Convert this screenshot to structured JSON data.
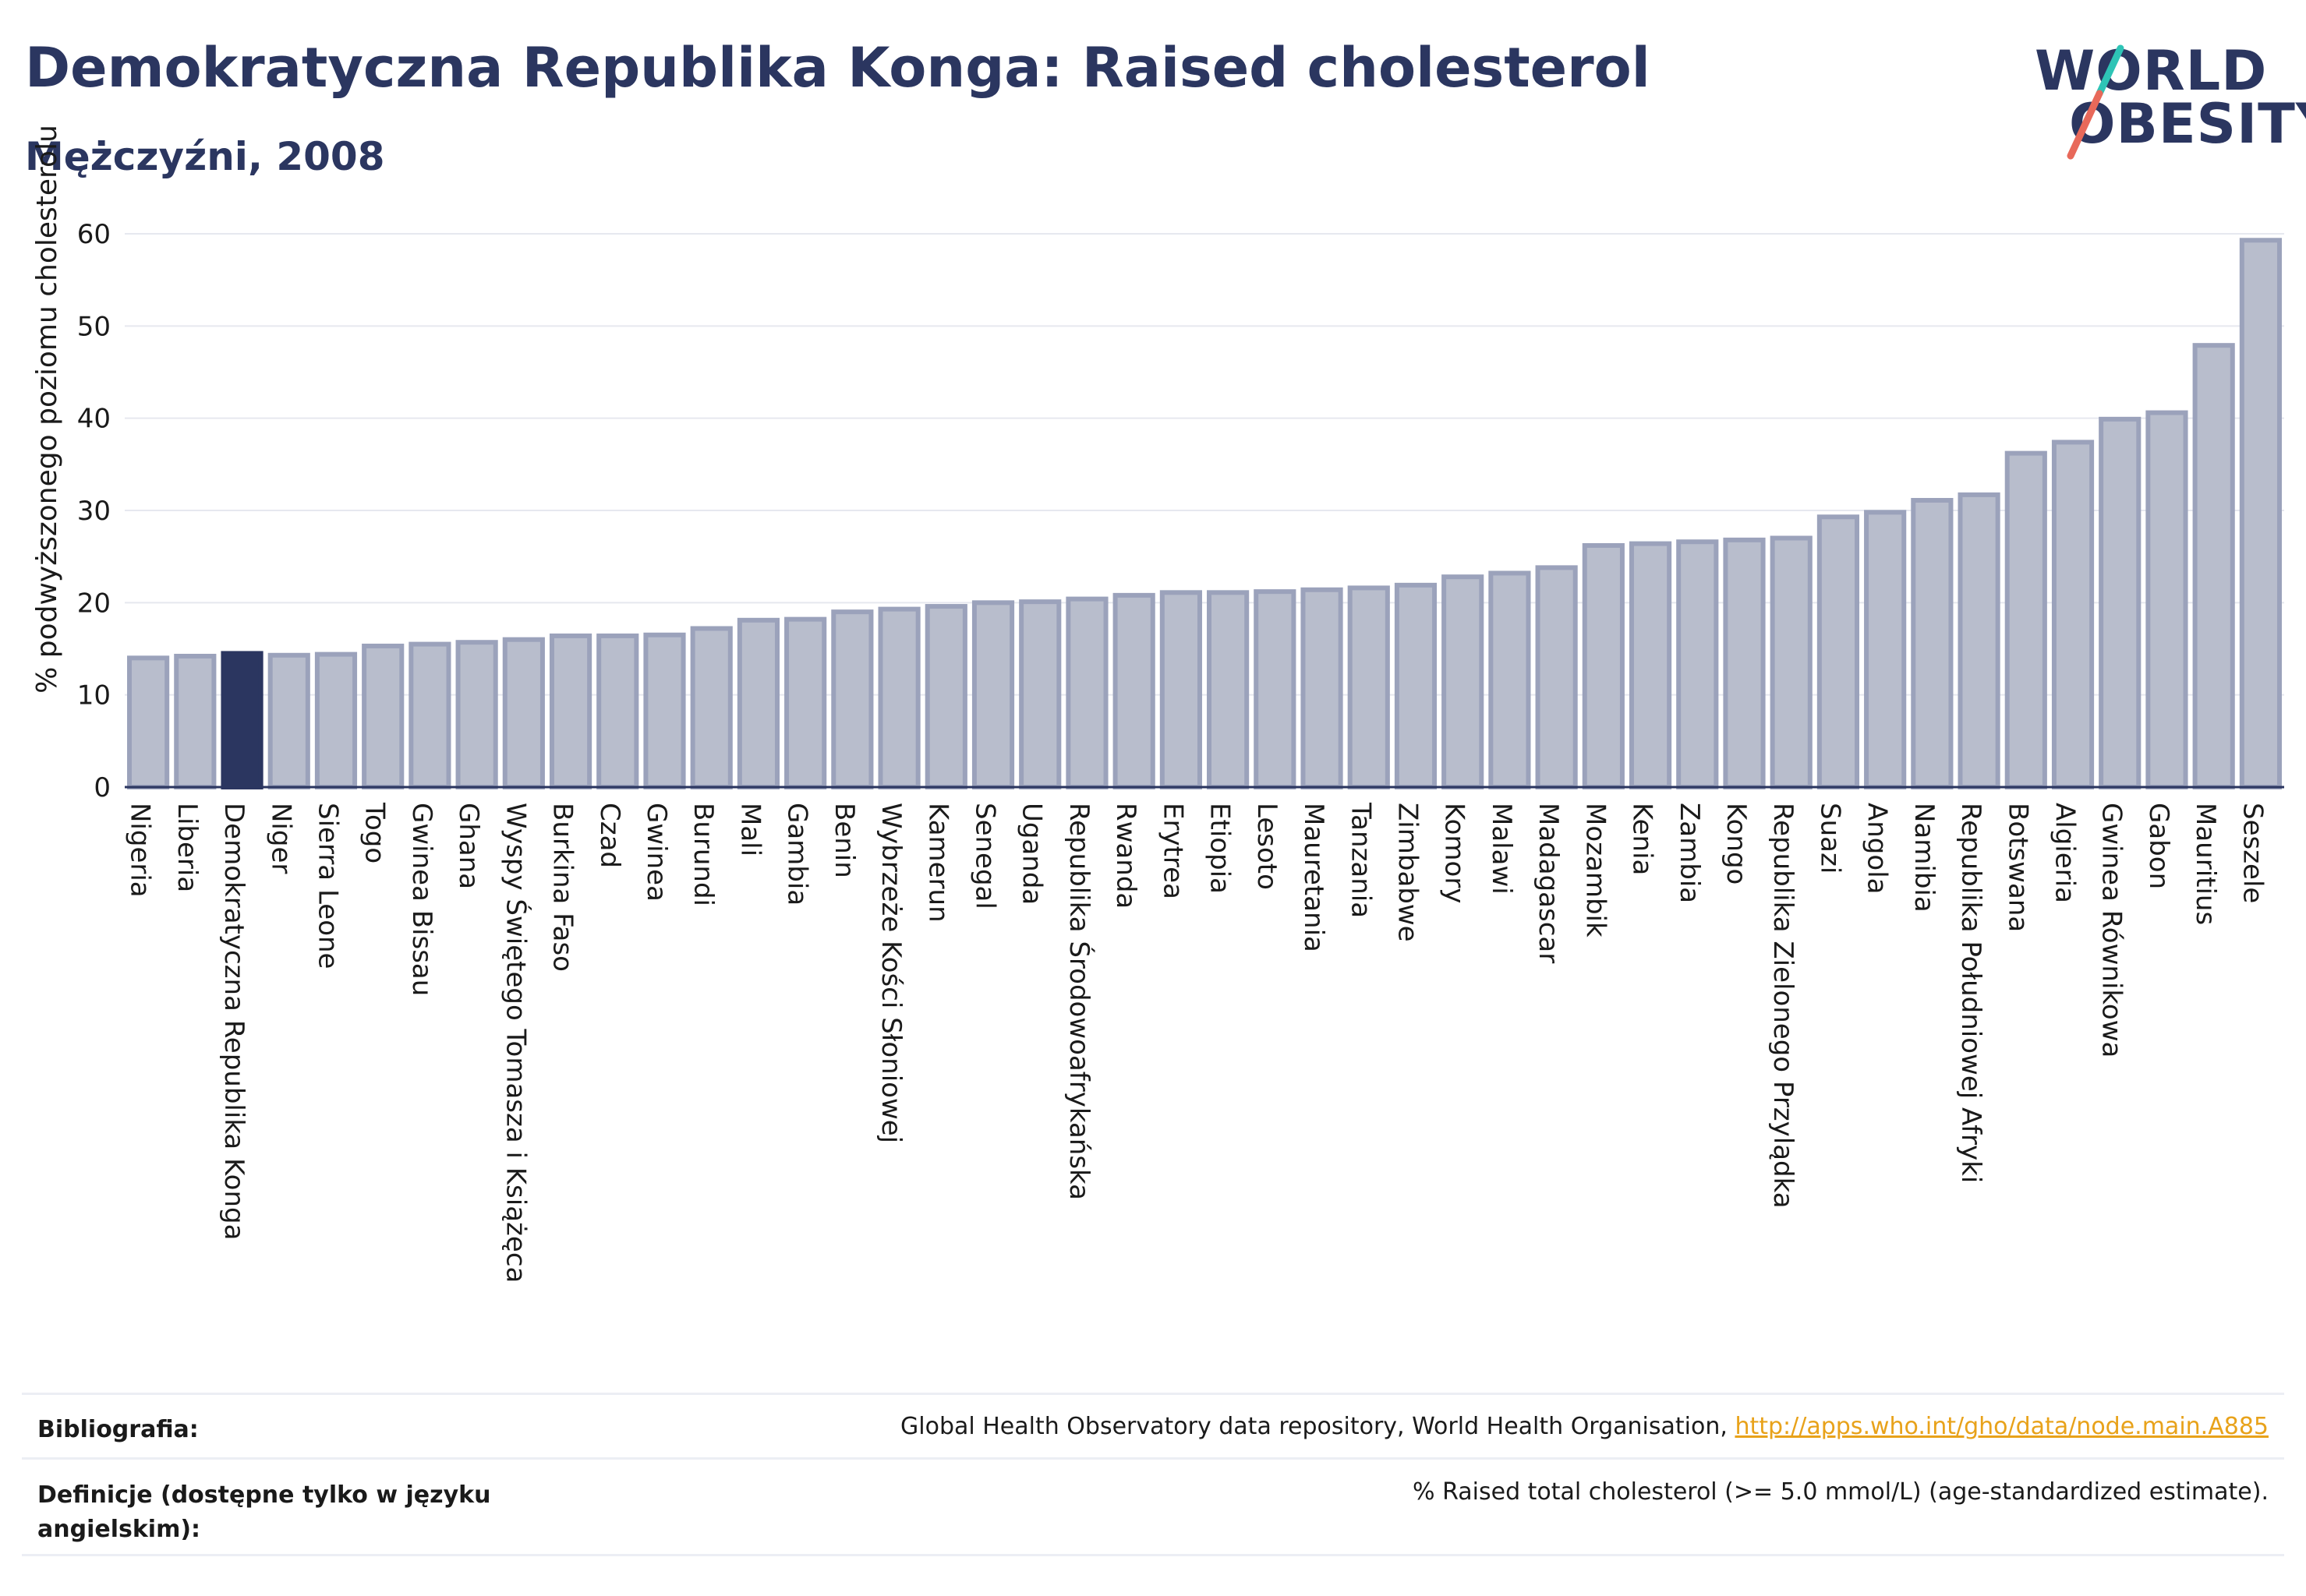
{
  "header": {
    "title": "Demokratyczna Republika Konga: Raised cholesterol",
    "subtitle": "Mężczyźni, 2008"
  },
  "logo": {
    "line1": "WORLD",
    "line2": "OBESITY",
    "slash_colors": [
      "#2ec4b6",
      "#e8695a"
    ]
  },
  "colors": {
    "bar": "#b8bdcc",
    "bar_border": "#9ba2bb",
    "highlight": "#2b3660",
    "axis_text": "#1a1a1a",
    "grid": "#e6e8ef",
    "link": "#e8a21a"
  },
  "chart_data": {
    "type": "bar",
    "ylabel": "% podwyższonego poziomu cholesterolu",
    "ylim": [
      0,
      60
    ],
    "yticks": [
      0,
      10,
      20,
      30,
      40,
      50,
      60
    ],
    "grid": true,
    "highlight": "Demokratyczna Republika Konga",
    "categories": [
      "Nigeria",
      "Liberia",
      "Demokratyczna Republika Konga",
      "Niger",
      "Sierra Leone",
      "Togo",
      "Gwinea Bissau",
      "Ghana",
      "Wyspy Świętego Tomasza i Książęca",
      "Burkina Faso",
      "Czad",
      "Gwinea",
      "Burundi",
      "Mali",
      "Gambia",
      "Benin",
      "Wybrzeże Kości Słoniowej",
      "Kamerun",
      "Senegal",
      "Uganda",
      "Republika Środowoafrykańska",
      "Rwanda",
      "Erytrea",
      "Etiopia",
      "Lesoto",
      "Mauretania",
      "Tanzania",
      "Zimbabwe",
      "Komory",
      "Malawi",
      "Madagascar",
      "Mozambik",
      "Kenia",
      "Zambia",
      "Kongo",
      "Republika Zielonego Przylądka",
      "Suazi",
      "Angola",
      "Namibia",
      "Republika Południowej Afryki",
      "Botswana",
      "Algieria",
      "Gwinea Równikowa",
      "Gabon",
      "Mauritius",
      "Seszele"
    ],
    "values": [
      14.0,
      14.2,
      14.5,
      14.3,
      14.4,
      15.3,
      15.5,
      15.7,
      16.0,
      16.4,
      16.4,
      16.5,
      17.2,
      18.1,
      18.2,
      19.0,
      19.3,
      19.6,
      20.0,
      20.1,
      20.4,
      20.8,
      21.1,
      21.1,
      21.2,
      21.4,
      21.6,
      21.9,
      22.8,
      23.2,
      23.8,
      26.2,
      26.4,
      26.6,
      26.8,
      27.0,
      29.3,
      29.8,
      31.1,
      31.7,
      36.2,
      37.4,
      39.9,
      40.6,
      47.9,
      59.3
    ]
  },
  "table": {
    "rows": [
      {
        "label": "Bibliografia:",
        "value": "Global Health Observatory data repository, World Health Organisation, ",
        "link": "http://apps.who.int/gho/data/node.main.A885"
      },
      {
        "label": "Definicje (dostępne tylko w języku angielskim):",
        "value": "% Raised total cholesterol (>= 5.0 mmol/L) (age-standardized estimate).",
        "link": ""
      }
    ]
  }
}
